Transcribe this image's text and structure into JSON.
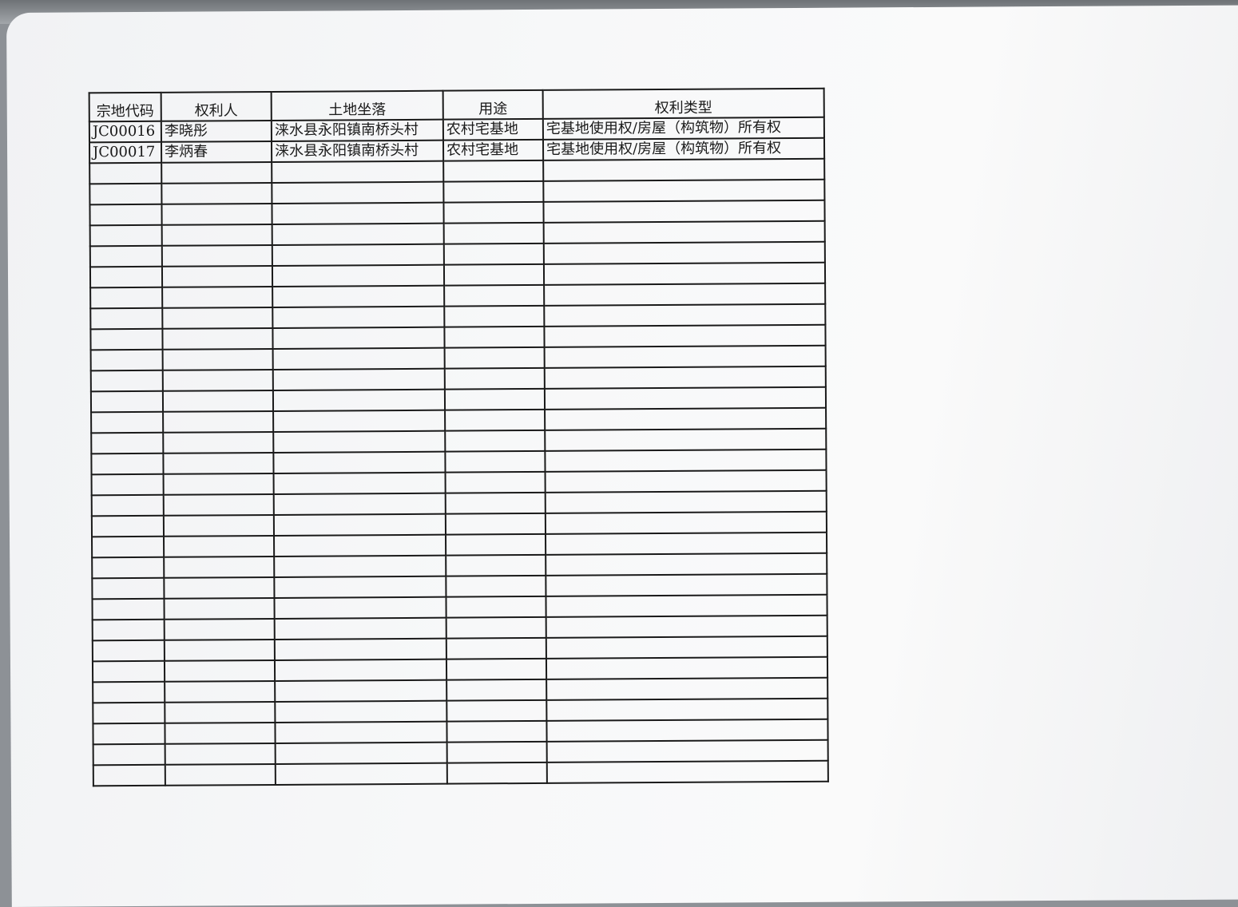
{
  "table": {
    "headers": [
      "宗地代码",
      "权利人",
      "土地坐落",
      "用途",
      "权利类型"
    ],
    "rows": [
      [
        "JC00016",
        "李晓彤",
        "涞水县永阳镇南桥头村",
        "农村宅基地",
        "宅基地使用权/房屋（构筑物）所有权"
      ],
      [
        "JC00017",
        "李炳春",
        "涞水县永阳镇南桥头村",
        "农村宅基地",
        "宅基地使用权/房屋（构筑物）所有权"
      ]
    ]
  }
}
